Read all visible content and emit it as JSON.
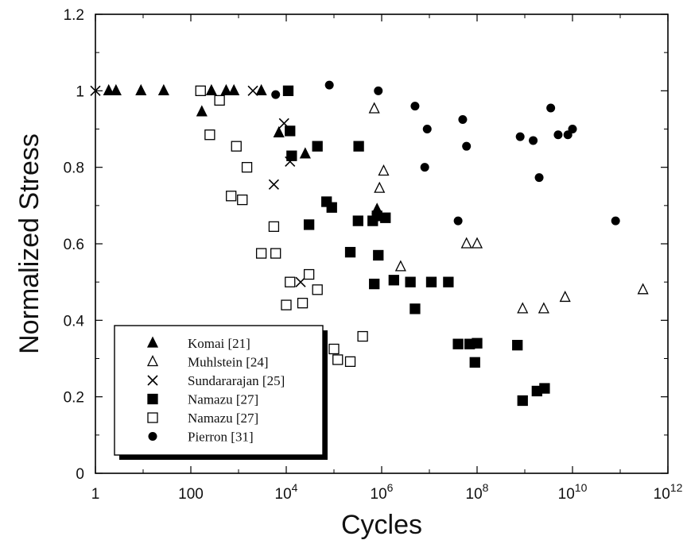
{
  "chart_data": {
    "type": "scatter",
    "xlabel": "Cycles",
    "ylabel": "Normalized Stress",
    "x_scale": "log",
    "xlim": [
      1,
      1000000000000
    ],
    "ylim": [
      0,
      1.2
    ],
    "grid": false,
    "legend_position": "bottom-left",
    "x_ticks": [
      {
        "value": 1,
        "base": "1",
        "exp": ""
      },
      {
        "value": 100,
        "base": "100",
        "exp": ""
      },
      {
        "value": 10000,
        "base": "10",
        "exp": "4"
      },
      {
        "value": 1000000,
        "base": "10",
        "exp": "6"
      },
      {
        "value": 100000000,
        "base": "10",
        "exp": "8"
      },
      {
        "value": 10000000000,
        "base": "10",
        "exp": "10"
      },
      {
        "value": 1000000000000,
        "base": "10",
        "exp": "12"
      }
    ],
    "y_ticks": [
      {
        "value": 0,
        "label": "0"
      },
      {
        "value": 0.2,
        "label": "0.2"
      },
      {
        "value": 0.4,
        "label": "0.4"
      },
      {
        "value": 0.6,
        "label": "0.6"
      },
      {
        "value": 0.8,
        "label": "0.8"
      },
      {
        "value": 1,
        "label": "1"
      },
      {
        "value": 1.2,
        "label": "1.2"
      }
    ],
    "series": [
      {
        "name": "Komai [21]",
        "marker": "filled-triangle",
        "points": [
          [
            1.9,
            1.0
          ],
          [
            2.7,
            1.0
          ],
          [
            9,
            1.0
          ],
          [
            27,
            1.0
          ],
          [
            170,
            0.945
          ],
          [
            270,
            1.0
          ],
          [
            550,
            1.0
          ],
          [
            800,
            1.0
          ],
          [
            3000,
            1.0
          ],
          [
            7000,
            0.89
          ],
          [
            25000,
            0.835
          ],
          [
            800000,
            0.69
          ]
        ]
      },
      {
        "name": "Muhlstein [24]",
        "marker": "open-triangle",
        "points": [
          [
            700000,
            0.953
          ],
          [
            900000,
            0.745
          ],
          [
            1100000,
            0.79
          ],
          [
            2500000,
            0.54
          ],
          [
            60000000,
            0.6
          ],
          [
            100000000,
            0.6
          ],
          [
            900000000,
            0.43
          ],
          [
            2500000000,
            0.43
          ],
          [
            7000000000,
            0.46
          ],
          [
            300000000000,
            0.48
          ]
        ]
      },
      {
        "name": "Sundararajan [25]",
        "marker": "cross",
        "points": [
          [
            1.0,
            1.0
          ],
          [
            2000,
            1.0
          ],
          [
            5500,
            0.755
          ],
          [
            9000,
            0.915
          ],
          [
            12000,
            0.815
          ],
          [
            20000,
            0.5
          ]
        ]
      },
      {
        "name": "Namazu [27]",
        "marker": "filled-square",
        "points": [
          [
            11000,
            1.0
          ],
          [
            12000,
            0.895
          ],
          [
            13000,
            0.83
          ],
          [
            45000,
            0.855
          ],
          [
            30000,
            0.65
          ],
          [
            70000,
            0.71
          ],
          [
            90000,
            0.695
          ],
          [
            220000,
            0.578
          ],
          [
            320000,
            0.66
          ],
          [
            330000,
            0.855
          ],
          [
            650000,
            0.66
          ],
          [
            800000,
            0.673
          ],
          [
            850000,
            0.57
          ],
          [
            700000,
            0.495
          ],
          [
            1200000,
            0.668
          ],
          [
            1800000,
            0.505
          ],
          [
            4000000,
            0.5
          ],
          [
            5000000,
            0.43
          ],
          [
            11000000,
            0.5
          ],
          [
            25000000,
            0.5
          ],
          [
            40000000,
            0.338
          ],
          [
            70000000,
            0.338
          ],
          [
            100000000,
            0.34
          ],
          [
            90000000,
            0.29
          ],
          [
            700000000,
            0.335
          ],
          [
            900000000,
            0.19
          ],
          [
            1800000000,
            0.215
          ],
          [
            2600000000,
            0.222
          ]
        ]
      },
      {
        "name": "Namazu [27]",
        "marker": "open-square",
        "points": [
          [
            160,
            1.0
          ],
          [
            400,
            0.975
          ],
          [
            250,
            0.885
          ],
          [
            900,
            0.855
          ],
          [
            700,
            0.725
          ],
          [
            1500,
            0.8
          ],
          [
            1200,
            0.715
          ],
          [
            3000,
            0.575
          ],
          [
            5500,
            0.645
          ],
          [
            6000,
            0.575
          ],
          [
            10000,
            0.44
          ],
          [
            12000,
            0.5
          ],
          [
            22000,
            0.445
          ],
          [
            30000,
            0.52
          ],
          [
            45000,
            0.48
          ],
          [
            100000,
            0.325
          ],
          [
            120000,
            0.297
          ],
          [
            220000,
            0.292
          ],
          [
            400000,
            0.358
          ]
        ]
      },
      {
        "name": "Pierron [31]",
        "marker": "filled-circle",
        "points": [
          [
            6000,
            0.99
          ],
          [
            80000,
            1.015
          ],
          [
            850000,
            1.0
          ],
          [
            5000000,
            0.96
          ],
          [
            8000000,
            0.8
          ],
          [
            9000000,
            0.9
          ],
          [
            40000000,
            0.66
          ],
          [
            50000000,
            0.925
          ],
          [
            60000000,
            0.855
          ],
          [
            800000000,
            0.88
          ],
          [
            1500000000,
            0.87
          ],
          [
            2000000000,
            0.773
          ],
          [
            3500000000,
            0.955
          ],
          [
            5000000000,
            0.885
          ],
          [
            8000000000,
            0.885
          ],
          [
            10000000000,
            0.9
          ],
          [
            80000000000,
            0.66
          ]
        ]
      }
    ]
  }
}
